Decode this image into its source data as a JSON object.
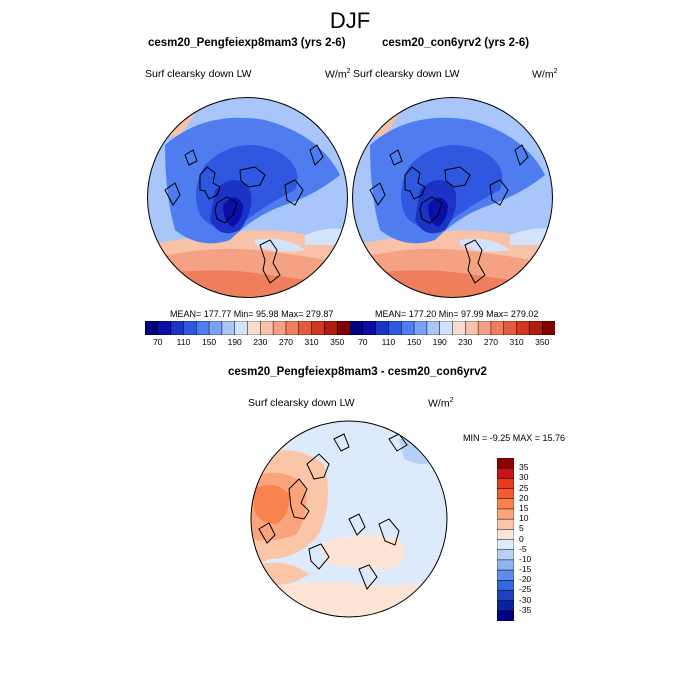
{
  "title": "DJF",
  "panels": [
    {
      "title": "cesm20_Pengfeiexp8mam3 (yrs 2-6)",
      "variable": "Surf clearsky down LW",
      "units_base": "W/m",
      "units_exp": "2",
      "stats": "MEAN= 177.77  Min=  95.98  Max= 279.87"
    },
    {
      "title": "cesm20_con6yrv2 (yrs 2-6)",
      "variable": "Surf clearsky down LW",
      "units_base": "W/m",
      "units_exp": "2",
      "stats": "MEAN= 177.20  Min=  97.99  Max= 279.02"
    }
  ],
  "diff_panel": {
    "title": "cesm20_Pengfeiexp8mam3 - cesm20_con6yrv2",
    "variable": "Surf clearsky down LW",
    "units_base": "W/m",
    "units_exp": "2",
    "stats": "MIN =  -9.25 MAX =  15.76"
  },
  "colorbar_abs": {
    "labels": [
      "70",
      "110",
      "150",
      "190",
      "230",
      "270",
      "310",
      "350"
    ],
    "colors": [
      "#00007f",
      "#0b0fa8",
      "#1c33c8",
      "#2f57e0",
      "#4f7df0",
      "#7aa2f6",
      "#a8c6fa",
      "#d2e3fb",
      "#f8dcd0",
      "#f8c2a8",
      "#f4a283",
      "#ef7e5c",
      "#e45a3c",
      "#d03820",
      "#b01e10",
      "#800000"
    ]
  },
  "colorbar_diff": {
    "labels": [
      "35",
      "30",
      "25",
      "20",
      "15",
      "10",
      "5",
      "0",
      "-5",
      "-10",
      "-15",
      "-20",
      "-25",
      "-30",
      "-35"
    ],
    "colors": [
      "#8b0000",
      "#c81414",
      "#e53a1e",
      "#f55a32",
      "#f8834f",
      "#f9a47c",
      "#fbc6a8",
      "#fde4d4",
      "#dceafc",
      "#b6d0f8",
      "#8db3f2",
      "#5f8deb",
      "#3566e0",
      "#1e40c0",
      "#0a22a0",
      "#000080"
    ]
  }
}
